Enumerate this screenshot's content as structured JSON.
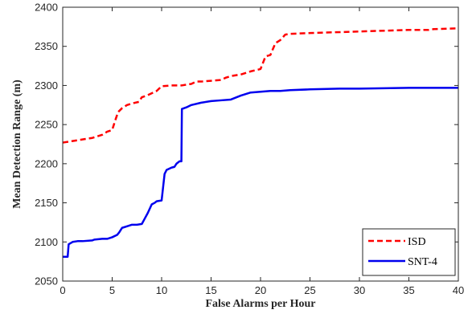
{
  "chart_data": {
    "type": "line",
    "title": "",
    "xlabel": "False Alarms per Hour",
    "ylabel": "Mean Detection Range (m)",
    "xlim": [
      0,
      40
    ],
    "ylim": [
      2050,
      2400
    ],
    "xticks": [
      0,
      5,
      10,
      15,
      20,
      25,
      30,
      35,
      40
    ],
    "yticks": [
      2050,
      2100,
      2150,
      2200,
      2250,
      2300,
      2350,
      2400
    ],
    "xtick_labels": [
      "0",
      "5",
      "10",
      "15",
      "20",
      "25",
      "30",
      "35",
      "40"
    ],
    "ytick_labels": [
      "2050",
      "2100",
      "2150",
      "2200",
      "2250",
      "2300",
      "2350",
      "2400"
    ],
    "grid": false,
    "box": true,
    "legend": {
      "position": "bottom-right"
    },
    "series": [
      {
        "name": "ISD",
        "color": "#ff0000",
        "line_style": "dashed",
        "x": [
          0,
          1,
          2,
          3,
          4,
          4.5,
          5,
          5.3,
          5.6,
          6,
          6.5,
          7,
          7.7,
          8,
          8.5,
          9,
          9.5,
          10,
          11,
          12,
          13,
          13.5,
          14,
          15,
          16,
          16.5,
          17,
          18,
          19,
          20,
          20.5,
          21,
          21.5,
          22,
          22.5,
          23,
          25,
          30,
          35,
          37,
          37.5,
          40
        ],
        "y": [
          2227,
          2229,
          2231,
          2233,
          2237,
          2241,
          2243,
          2255,
          2266,
          2271,
          2275,
          2277,
          2279,
          2285,
          2287,
          2290,
          2293,
          2299,
          2300,
          2300,
          2302,
          2305,
          2305,
          2306,
          2307,
          2310,
          2312,
          2314,
          2318,
          2321,
          2337,
          2339,
          2354,
          2358,
          2365,
          2366,
          2367,
          2369,
          2371,
          2371,
          2372,
          2373
        ]
      },
      {
        "name": "SNT-4",
        "color": "#0000ee",
        "line_style": "solid",
        "x": [
          0,
          0.3,
          0.5,
          0.6,
          1,
          1.5,
          2,
          3,
          3.2,
          4,
          4.5,
          5,
          5.5,
          5.7,
          5.9,
          6,
          6.5,
          7,
          7.5,
          8,
          8.3,
          8.6,
          9,
          9.3,
          9.5,
          10,
          10.3,
          10.5,
          11,
          11.3,
          11.5,
          11.8,
          12,
          12.05,
          12.5,
          13,
          14,
          15,
          16,
          17,
          18,
          19,
          20,
          21,
          22,
          23,
          25,
          28,
          30,
          35,
          40
        ],
        "y": [
          2081,
          2081,
          2081,
          2097,
          2100,
          2101,
          2101,
          2102,
          2103,
          2104,
          2104,
          2106,
          2109,
          2112,
          2116,
          2118,
          2120,
          2122,
          2122,
          2123,
          2130,
          2137,
          2148,
          2150,
          2152,
          2153,
          2187,
          2192,
          2195,
          2196,
          2200,
          2203,
          2203,
          2270,
          2272,
          2275,
          2278,
          2280,
          2281,
          2282,
          2287,
          2291,
          2292,
          2293,
          2293,
          2294,
          2295,
          2296,
          2296,
          2297,
          2297
        ]
      }
    ]
  }
}
